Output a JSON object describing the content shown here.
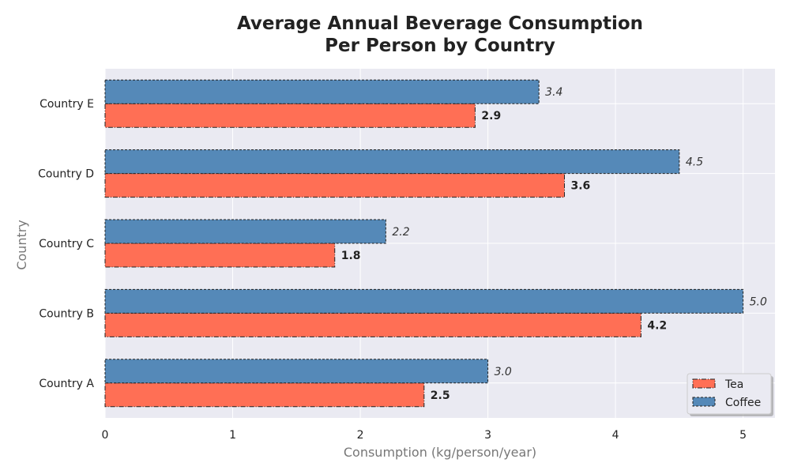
{
  "chart_data": {
    "type": "bar",
    "orientation": "horizontal",
    "title_line1": "Average Annual Beverage Consumption",
    "title_line2": "Per Person by Country",
    "xlabel": "Consumption (kg/person/year)",
    "ylabel": "Country",
    "categories": [
      "Country A",
      "Country B",
      "Country C",
      "Country D",
      "Country E"
    ],
    "xlim": [
      0,
      5.25
    ],
    "xticks": [
      "0",
      "1",
      "2",
      "3",
      "4",
      "5"
    ],
    "grid": true,
    "legend_position": "bottom-right",
    "series": [
      {
        "name": "Tea",
        "values": [
          2.5,
          4.2,
          1.8,
          3.6,
          2.9
        ],
        "labels": [
          "2.5",
          "4.2",
          "1.8",
          "3.6",
          "2.9"
        ],
        "color": "#ff6f55"
      },
      {
        "name": "Coffee",
        "values": [
          3.0,
          5.0,
          2.2,
          4.5,
          3.4
        ],
        "labels": [
          "3.0",
          "5.0",
          "2.2",
          "4.5",
          "3.4"
        ],
        "color": "#5589b8"
      }
    ]
  }
}
